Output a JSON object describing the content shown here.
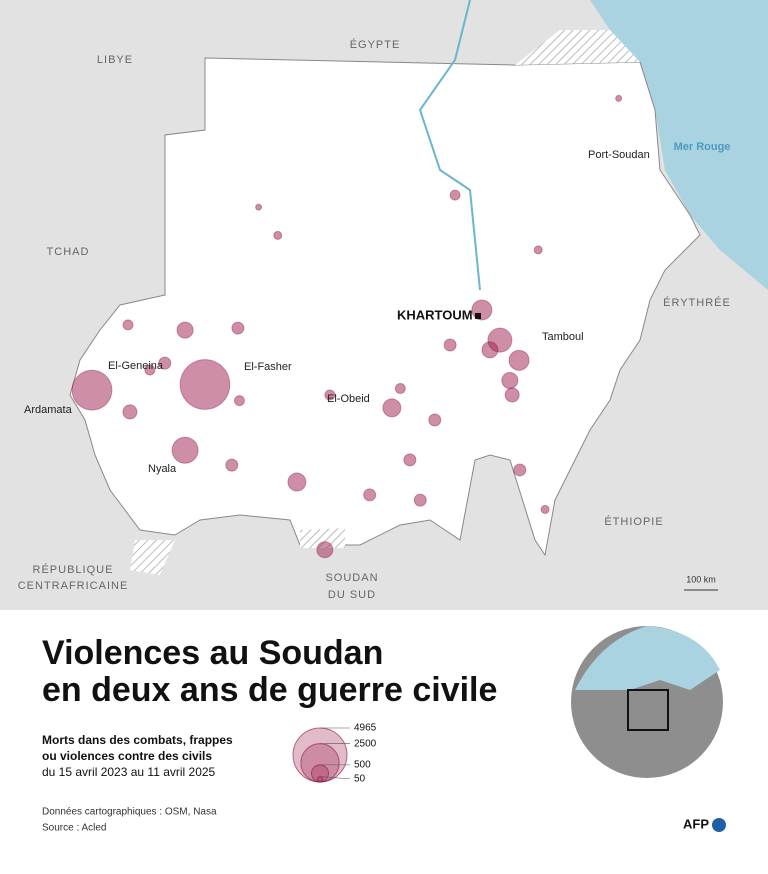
{
  "map": {
    "countries": {
      "libya": "LIBYE",
      "egypt": "ÉGYPTE",
      "chad": "TCHAD",
      "eritrea": "ÉRYTHRÉE",
      "ethiopia": "ÉTHIOPIE",
      "car_1": "RÉPUBLIQUE",
      "car_2": "CENTRAFRICAINE",
      "ssudan_1": "SOUDAN",
      "ssudan_2": "DU SUD"
    },
    "sea": "Mer Rouge",
    "cities": {
      "khartoum": "KHARTOUM",
      "port_sudan": "Port-Soudan",
      "tamboul": "Tamboul",
      "el_geneina": "El-Geneina",
      "el_fasher": "El-Fasher",
      "ardamata": "Ardamata",
      "nyala": "Nyala",
      "el_obeid": "El-Obeid"
    },
    "scale": "100 km"
  },
  "title": [
    "Violences au Soudan",
    "en deux ans de guerre civile"
  ],
  "legend": {
    "lines": [
      "Morts dans des combats, frappes",
      "ou violences contre des civils"
    ],
    "dates": "du 15 avril 2023 au 11 avril 2025",
    "values": [
      4965,
      2500,
      500,
      50
    ]
  },
  "events": {
    "lon": [
      22.45,
      25.4,
      24.88,
      32.63,
      33.1,
      33.6,
      32.84,
      33.36,
      30.28,
      28.53,
      23.44,
      27.8,
      26.26,
      24.88,
      23.39,
      26.1,
      29.7,
      30.75,
      31.4,
      33.42,
      33.62,
      31.93,
      27.3,
      26.8,
      36.2,
      34.28,
      30.5,
      24.35,
      28.66,
      31.02,
      23.96,
      26.3,
      31.8,
      34.1
    ],
    "lat": [
      13.76,
      13.9,
      12.27,
      15.75,
      15.0,
      14.5,
      14.76,
      14.0,
      13.32,
      9.8,
      13.22,
      11.48,
      15.3,
      15.25,
      15.38,
      11.9,
      11.16,
      12.03,
      13.02,
      13.64,
      11.78,
      18.6,
      17.6,
      18.3,
      21.0,
      10.8,
      13.8,
      14.43,
      13.64,
      11.03,
      14.26,
      13.5,
      14.88,
      17.24
    ],
    "deaths": [
      2700,
      4200,
      1150,
      680,
      980,
      680,
      440,
      440,
      550,
      440,
      335,
      550,
      245,
      440,
      170,
      245,
      245,
      245,
      245,
      335,
      245,
      170,
      110,
      60,
      60,
      110,
      170,
      245,
      170,
      245,
      170,
      170,
      245,
      110
    ]
  },
  "sources": [
    "Données cartographiques : OSM, Nasa",
    "Source : Acled"
  ],
  "logo": "AFP"
}
